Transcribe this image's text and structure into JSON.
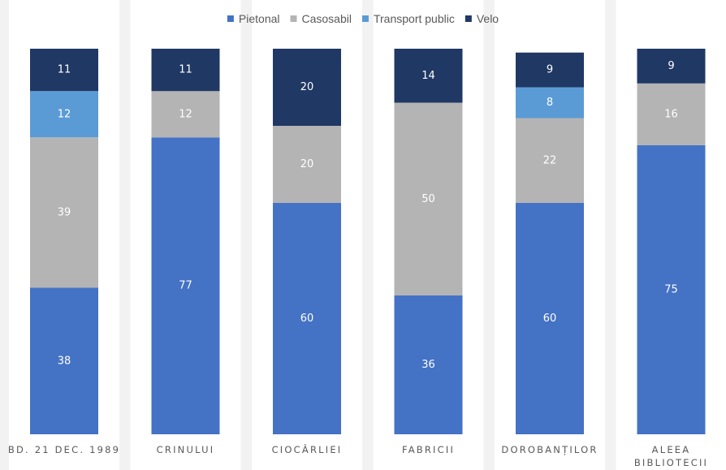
{
  "chart_data": {
    "type": "bar",
    "stacked": true,
    "percent": true,
    "title": "",
    "xlabel": "",
    "ylabel": "",
    "ylim": [
      0,
      100
    ],
    "grid": false,
    "legend_position": "top",
    "categories": [
      [
        "BD. 21 DEC. 1989"
      ],
      [
        "CRINULUI"
      ],
      [
        "CIOCÂRLIEI"
      ],
      [
        "FABRICII"
      ],
      [
        "DOROBANȚILOR"
      ],
      [
        "ALEEA",
        "BIBLIOTECII"
      ]
    ],
    "series": [
      {
        "name": "Pietonal",
        "color": "#4472c4",
        "label_color": "#ffffff",
        "values": [
          38,
          77,
          60,
          36,
          60,
          75
        ]
      },
      {
        "name": "Casosabil",
        "color": "#b4b4b4",
        "label_color": "#ffffff",
        "values": [
          39,
          12,
          20,
          50,
          22,
          16
        ]
      },
      {
        "name": "Transport public",
        "color": "#5b9bd5",
        "label_color": "#ffffff",
        "values": [
          12,
          0,
          0,
          0,
          8,
          0
        ]
      },
      {
        "name": "Velo",
        "color": "#203864",
        "label_color": "#ffffff",
        "values": [
          11,
          11,
          20,
          14,
          9,
          9
        ]
      }
    ]
  }
}
